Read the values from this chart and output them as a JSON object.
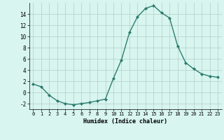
{
  "x": [
    0,
    1,
    2,
    3,
    4,
    5,
    6,
    7,
    8,
    9,
    10,
    11,
    12,
    13,
    14,
    15,
    16,
    17,
    18,
    19,
    20,
    21,
    22,
    23
  ],
  "y": [
    1.5,
    1.0,
    -0.5,
    -1.5,
    -2.0,
    -2.2,
    -2.0,
    -1.8,
    -1.5,
    -1.2,
    2.5,
    5.8,
    10.7,
    13.5,
    15.0,
    15.5,
    14.2,
    13.3,
    8.3,
    5.3,
    4.2,
    3.3,
    2.9,
    2.7
  ],
  "line_color": "#2d7d6e",
  "marker": "D",
  "markersize": 2.0,
  "linewidth": 1.0,
  "bg_color": "#d8f5f0",
  "grid_color": "#b8d4cf",
  "xlabel": "Humidex (Indice chaleur)",
  "ylim": [
    -3,
    16
  ],
  "yticks": [
    -2,
    0,
    2,
    4,
    6,
    8,
    10,
    12,
    14
  ],
  "xticks": [
    0,
    1,
    2,
    3,
    4,
    5,
    6,
    7,
    8,
    9,
    10,
    11,
    12,
    13,
    14,
    15,
    16,
    17,
    18,
    19,
    20,
    21,
    22,
    23
  ],
  "xlim": [
    -0.5,
    23.5
  ]
}
